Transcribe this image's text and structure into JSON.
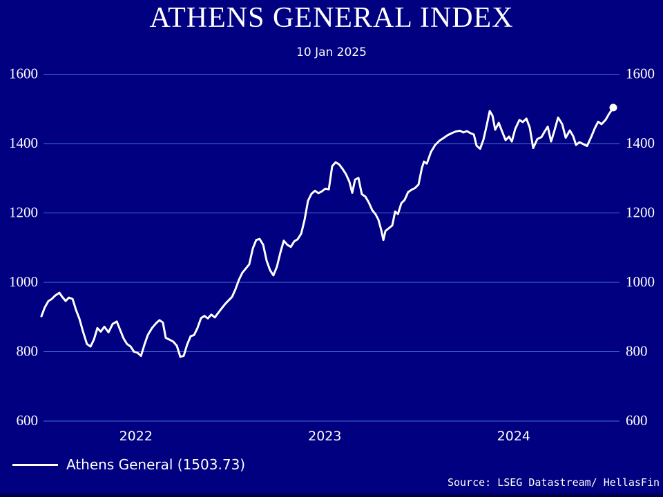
{
  "title": "ATHENS GENERAL INDEX",
  "subtitle": "10 Jan 2025",
  "source_credit": "Source: LSEG Datastream/ HellasFin",
  "legend": {
    "label": "Athens General (1503.73)"
  },
  "colors": {
    "background": "#000080",
    "gridline": "#4472d4",
    "line": "#ffffff",
    "text": "#ffffff",
    "bottom_strip": "#000052"
  },
  "chart_data": {
    "type": "line",
    "title": "ATHENS GENERAL INDEX",
    "subtitle": "10 Jan 2025",
    "xlabel": "",
    "ylabel": "",
    "ylim": [
      600,
      1600
    ],
    "xlim": [
      2022.0,
      2025.027
    ],
    "y_ticks": [
      600,
      800,
      1000,
      1200,
      1400,
      1600
    ],
    "x_ticks": [
      {
        "t": 2022.5,
        "label": "2022"
      },
      {
        "t": 2023.5,
        "label": "2023"
      },
      {
        "t": 2024.5,
        "label": "2024"
      }
    ],
    "grid": "horizontal",
    "y_labels_both_sides": true,
    "legend_position": "bottom-left",
    "end_marker": true,
    "series": [
      {
        "name": "Athens General",
        "last_value": 1503.73,
        "x": [
          2022.0,
          2022.018,
          2022.037,
          2022.055,
          2022.073,
          2022.095,
          2022.11,
          2022.128,
          2022.146,
          2022.165,
          2022.183,
          2022.201,
          2022.219,
          2022.241,
          2022.26,
          2022.278,
          2022.296,
          2022.314,
          2022.333,
          2022.355,
          2022.377,
          2022.399,
          2022.417,
          2022.435,
          2022.453,
          2022.472,
          2022.49,
          2022.508,
          2022.527,
          2022.545,
          2022.563,
          2022.585,
          2022.607,
          2022.625,
          2022.643,
          2022.658,
          2022.68,
          2022.698,
          2022.717,
          2022.735,
          2022.753,
          2022.771,
          2022.79,
          2022.808,
          2022.826,
          2022.845,
          2022.863,
          2022.881,
          2022.899,
          2022.918,
          2022.936,
          2022.954,
          2022.973,
          2022.991,
          2023.009,
          2023.027,
          2023.046,
          2023.064,
          2023.082,
          2023.1,
          2023.119,
          2023.137,
          2023.155,
          2023.174,
          2023.192,
          2023.21,
          2023.228,
          2023.247,
          2023.265,
          2023.283,
          2023.302,
          2023.32,
          2023.338,
          2023.356,
          2023.375,
          2023.393,
          2023.411,
          2023.429,
          2023.448,
          2023.466,
          2023.484,
          2023.503,
          2023.521,
          2023.539,
          2023.557,
          2023.576,
          2023.594,
          2023.612,
          2023.63,
          2023.645,
          2023.66,
          2023.678,
          2023.696,
          2023.715,
          2023.733,
          2023.751,
          2023.769,
          2023.784,
          2023.799,
          2023.81,
          2023.821,
          2023.839,
          2023.857,
          2023.872,
          2023.887,
          2023.905,
          2023.923,
          2023.941,
          2023.96,
          2023.978,
          2023.996,
          2024.014,
          2024.025,
          2024.04,
          2024.062,
          2024.084,
          2024.106,
          2024.128,
          2024.15,
          2024.172,
          2024.194,
          2024.216,
          2024.234,
          2024.252,
          2024.271,
          2024.289,
          2024.303,
          2024.322,
          2024.34,
          2024.358,
          2024.373,
          2024.388,
          2024.402,
          2024.421,
          2024.439,
          2024.457,
          2024.475,
          2024.49,
          2024.508,
          2024.53,
          2024.548,
          2024.567,
          2024.585,
          2024.603,
          2024.625,
          2024.647,
          2024.665,
          2024.68,
          2024.698,
          2024.716,
          2024.735,
          2024.757,
          2024.775,
          2024.797,
          2024.815,
          2024.83,
          2024.848,
          2024.87,
          2024.888,
          2024.91,
          2024.929,
          2024.947,
          2024.965,
          2024.987,
          2025.005,
          2025.027
        ],
        "values": [
          902,
          928,
          946,
          952,
          962,
          970,
          958,
          946,
          956,
          952,
          920,
          895,
          860,
          822,
          815,
          835,
          868,
          858,
          872,
          856,
          880,
          887,
          862,
          838,
          822,
          815,
          800,
          797,
          788,
          820,
          848,
          868,
          882,
          891,
          884,
          840,
          834,
          829,
          817,
          785,
          788,
          820,
          845,
          848,
          868,
          897,
          903,
          896,
          907,
          899,
          912,
          925,
          938,
          948,
          958,
          980,
          1008,
          1028,
          1040,
          1052,
          1098,
          1122,
          1125,
          1108,
          1062,
          1035,
          1020,
          1046,
          1086,
          1120,
          1108,
          1102,
          1118,
          1124,
          1140,
          1180,
          1235,
          1255,
          1264,
          1257,
          1262,
          1270,
          1268,
          1335,
          1346,
          1340,
          1327,
          1312,
          1290,
          1258,
          1296,
          1301,
          1254,
          1247,
          1230,
          1208,
          1196,
          1180,
          1150,
          1122,
          1148,
          1156,
          1164,
          1204,
          1197,
          1228,
          1238,
          1260,
          1267,
          1272,
          1282,
          1330,
          1348,
          1342,
          1376,
          1396,
          1408,
          1416,
          1424,
          1430,
          1435,
          1437,
          1432,
          1436,
          1430,
          1426,
          1394,
          1385,
          1412,
          1455,
          1494,
          1480,
          1440,
          1460,
          1434,
          1410,
          1420,
          1406,
          1442,
          1468,
          1462,
          1472,
          1446,
          1387,
          1413,
          1419,
          1436,
          1449,
          1406,
          1438,
          1475,
          1456,
          1417,
          1438,
          1421,
          1396,
          1404,
          1398,
          1393,
          1419,
          1444,
          1463,
          1456,
          1469,
          1486,
          1503.73
        ]
      }
    ]
  }
}
